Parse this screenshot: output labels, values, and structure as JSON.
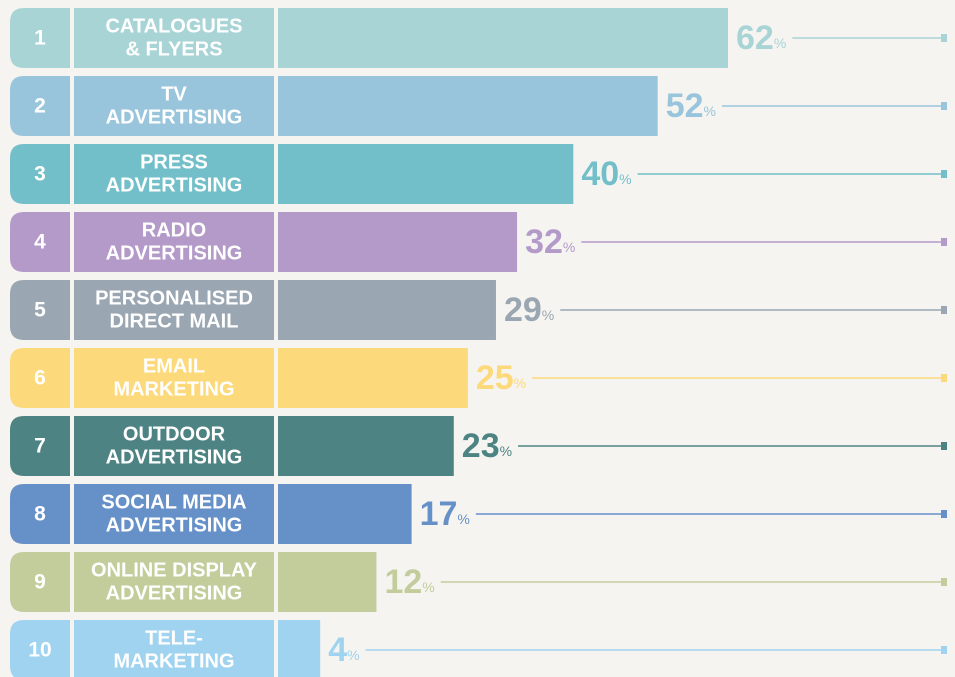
{
  "chart_data": {
    "type": "bar",
    "ranks": [
      "1",
      "2",
      "3",
      "4",
      "5",
      "6",
      "7",
      "8",
      "9",
      "10"
    ],
    "categories": [
      [
        "CATALOGUES",
        "& FLYERS"
      ],
      [
        "TV",
        "ADVERTISING"
      ],
      [
        "PRESS",
        "ADVERTISING"
      ],
      [
        "RADIO",
        "ADVERTISING"
      ],
      [
        "PERSONALISED",
        "DIRECT MAIL"
      ],
      [
        "EMAIL",
        "MARKETING"
      ],
      [
        "OUTDOOR",
        "ADVERTISING"
      ],
      [
        "SOCIAL MEDIA",
        "ADVERTISING"
      ],
      [
        "ONLINE DISPLAY",
        "ADVERTISING"
      ],
      [
        "TELE-",
        "MARKETING"
      ]
    ],
    "values": [
      62,
      52,
      40,
      32,
      29,
      25,
      23,
      17,
      12,
      4
    ],
    "value_labels": [
      "62%",
      "52%",
      "40%",
      "32%",
      "29%",
      "25%",
      "23%",
      "17%",
      "12%",
      "4%"
    ],
    "colors": [
      "#a9d4d6",
      "#99c5dc",
      "#72bfc9",
      "#b39ac8",
      "#9aa6b2",
      "#fcd97a",
      "#4e8383",
      "#6690c8",
      "#c3cd9c",
      "#9fd3ef"
    ],
    "xlim": [
      -2,
      62
    ]
  }
}
